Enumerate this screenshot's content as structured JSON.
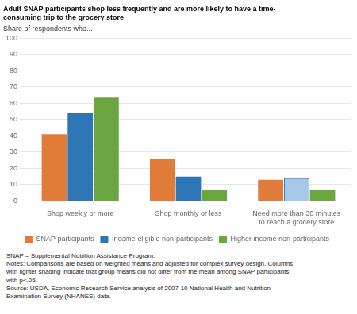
{
  "chart_data": {
    "type": "bar",
    "title": [
      "Adult SNAP participants shop less frequently and are more likely to have a time-",
      "consuming trip to the grocery store"
    ],
    "ylabel": "Share of respondents who...",
    "categories": [
      "Shop weekly or more",
      "Shop monthly or less",
      "Need more than 30 minutes\nto reach a grocery store"
    ],
    "series": [
      {
        "name": "SNAP participants",
        "color": "#E07B39",
        "values": [
          41,
          26,
          13
        ]
      },
      {
        "name": "Income-eligible non-participants",
        "color": "#2E75B6",
        "colors": [
          "#2E75B6",
          "#2E75B6",
          "#A8C8E8"
        ],
        "values": [
          54,
          15,
          14
        ]
      },
      {
        "name": "Higher income non-participants",
        "color": "#6BA641",
        "values": [
          64,
          7,
          7
        ]
      }
    ],
    "ylim": [
      0,
      100
    ],
    "yticks": [
      0,
      10,
      20,
      30,
      40,
      50,
      60,
      70,
      80,
      90,
      100
    ],
    "grid": true,
    "legend": "bottom",
    "annotations": [
      "SNAP = Supplemental Nutrition Assistance Program.",
      "Notes: Comparisons are based on weighted means and adjusted for complex survey design. Columns\nwith lighter shading indicate that group means did not differ from the mean among SNAP participants\nwith p<.05.",
      "Source: USDA, Economic Research Service analysis of 2007-10 National Health and Nutrition\nExamination Survey (NHANES) data."
    ]
  }
}
